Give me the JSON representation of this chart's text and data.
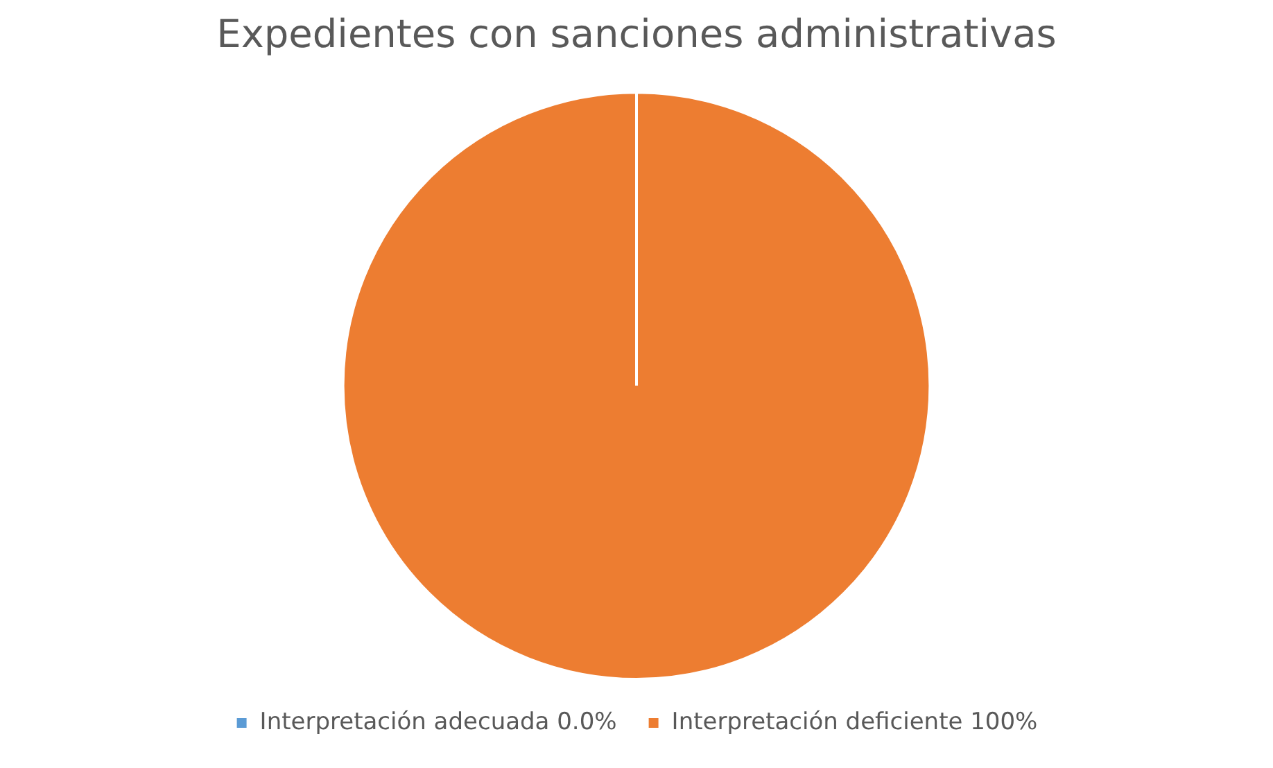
{
  "chart_data": {
    "type": "pie",
    "title": "Expedientes con sanciones administrativas",
    "categories": [
      "Interpretación adecuada 0.0%",
      "Interpretación deficiente 100%"
    ],
    "values": [
      0,
      100
    ],
    "colors": [
      "#5b9bd5",
      "#ed7d31"
    ],
    "legend": "bottom"
  }
}
